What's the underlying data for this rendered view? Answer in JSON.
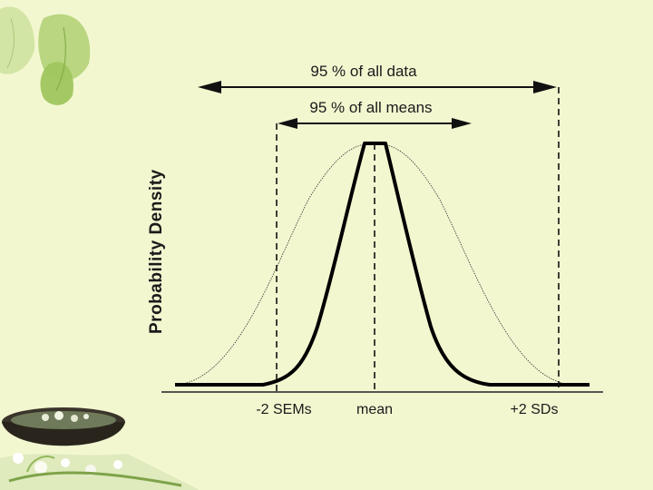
{
  "diagram": {
    "y_axis_label": "Probability Density",
    "annotations": {
      "data_span": "95 % of all data",
      "means_span": "95 % of all means"
    },
    "x_labels": {
      "left": "-2 SEMs",
      "center": "mean",
      "right": "+2 SDs"
    }
  },
  "colors": {
    "background": "#f3f7d0",
    "ink": "#111111",
    "leaf": "#a9c86a",
    "bowl": "#2e2a22"
  }
}
